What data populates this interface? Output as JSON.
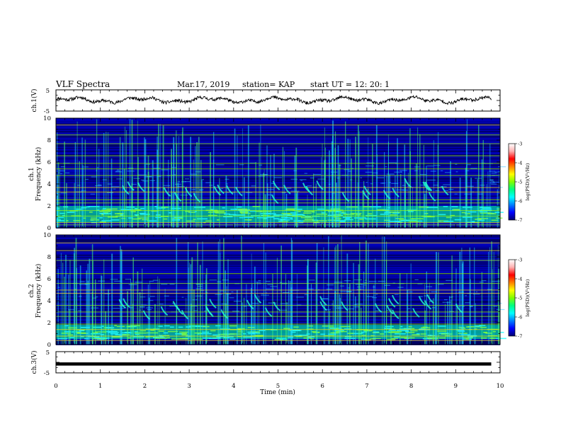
{
  "header": {
    "title": "VLF Spectra",
    "date": "Mar.17, 2019",
    "station": "station= KAP",
    "start": "start  UT  =   12: 20: 1"
  },
  "chart_data": [
    {
      "type": "line",
      "name": "ch1-waveform",
      "ylabel": "ch.1(V)",
      "ylim": [
        -5,
        5
      ],
      "yticks": [
        "5",
        "-5"
      ],
      "xlim": [
        0,
        10
      ],
      "description_values": {
        "x_end_min": 9.8,
        "mean_level_V": 0.2,
        "approx_amplitude_V": 1.5
      }
    },
    {
      "type": "heatmap",
      "name": "ch1-spectrogram",
      "ylabel": "ch.1\nFrequency (kHz)",
      "ylim": [
        0,
        10
      ],
      "yticks": [
        "0",
        "2",
        "4",
        "6",
        "8",
        "10"
      ],
      "xlim": [
        0,
        10
      ],
      "z_range": [
        -7,
        -3
      ],
      "emission_bands_kHz": [
        0.5,
        2.0
      ],
      "bright_tones_kHz": [
        0.3,
        0.5,
        1.1,
        1.6,
        2.3,
        2.6,
        3.3,
        3.7,
        4.8,
        5.4,
        5.9,
        6.6,
        7.7,
        8.5,
        9.4
      ]
    },
    {
      "type": "heatmap",
      "name": "ch2-spectrogram",
      "ylabel": "ch.2\nFrequency (kHz)",
      "ylim": [
        0,
        10
      ],
      "yticks": [
        "0",
        "2",
        "4",
        "6",
        "8",
        "10"
      ],
      "xlim": [
        0,
        10
      ],
      "z_range": [
        -7,
        -3
      ],
      "emission_bands_kHz": [
        0.5,
        1.8
      ],
      "bright_tones_kHz": [
        0.4,
        0.8,
        1.4,
        1.9,
        2.6,
        3.0,
        3.6,
        4.7,
        5.0,
        5.6,
        6.5,
        7.7,
        8.6,
        9.3
      ]
    },
    {
      "type": "line",
      "name": "ch3-waveform",
      "ylabel": "ch.3(V)",
      "ylim": [
        -5,
        5
      ],
      "yticks": [
        "5",
        "-5"
      ],
      "xlim": [
        0,
        10
      ],
      "xlabel": "Time  (min)",
      "xticks": [
        "0",
        "1",
        "2",
        "3",
        "4",
        "5",
        "6",
        "7",
        "8",
        "9",
        "10"
      ],
      "description_values": {
        "x_end_min": 9.8,
        "constant_level_V": -0.8
      }
    }
  ],
  "colorbar": {
    "label": "log(PSD)(V²/Hz)",
    "ticks": [
      "-3",
      "-4",
      "-5",
      "-6",
      "-7"
    ],
    "colors": [
      "#000070",
      "#0000ff",
      "#0080ff",
      "#00ffff",
      "#00ff80",
      "#80ff00",
      "#ffff00",
      "#ff8000",
      "#ff0000",
      "#ffb0b0",
      "#ffffff"
    ]
  }
}
